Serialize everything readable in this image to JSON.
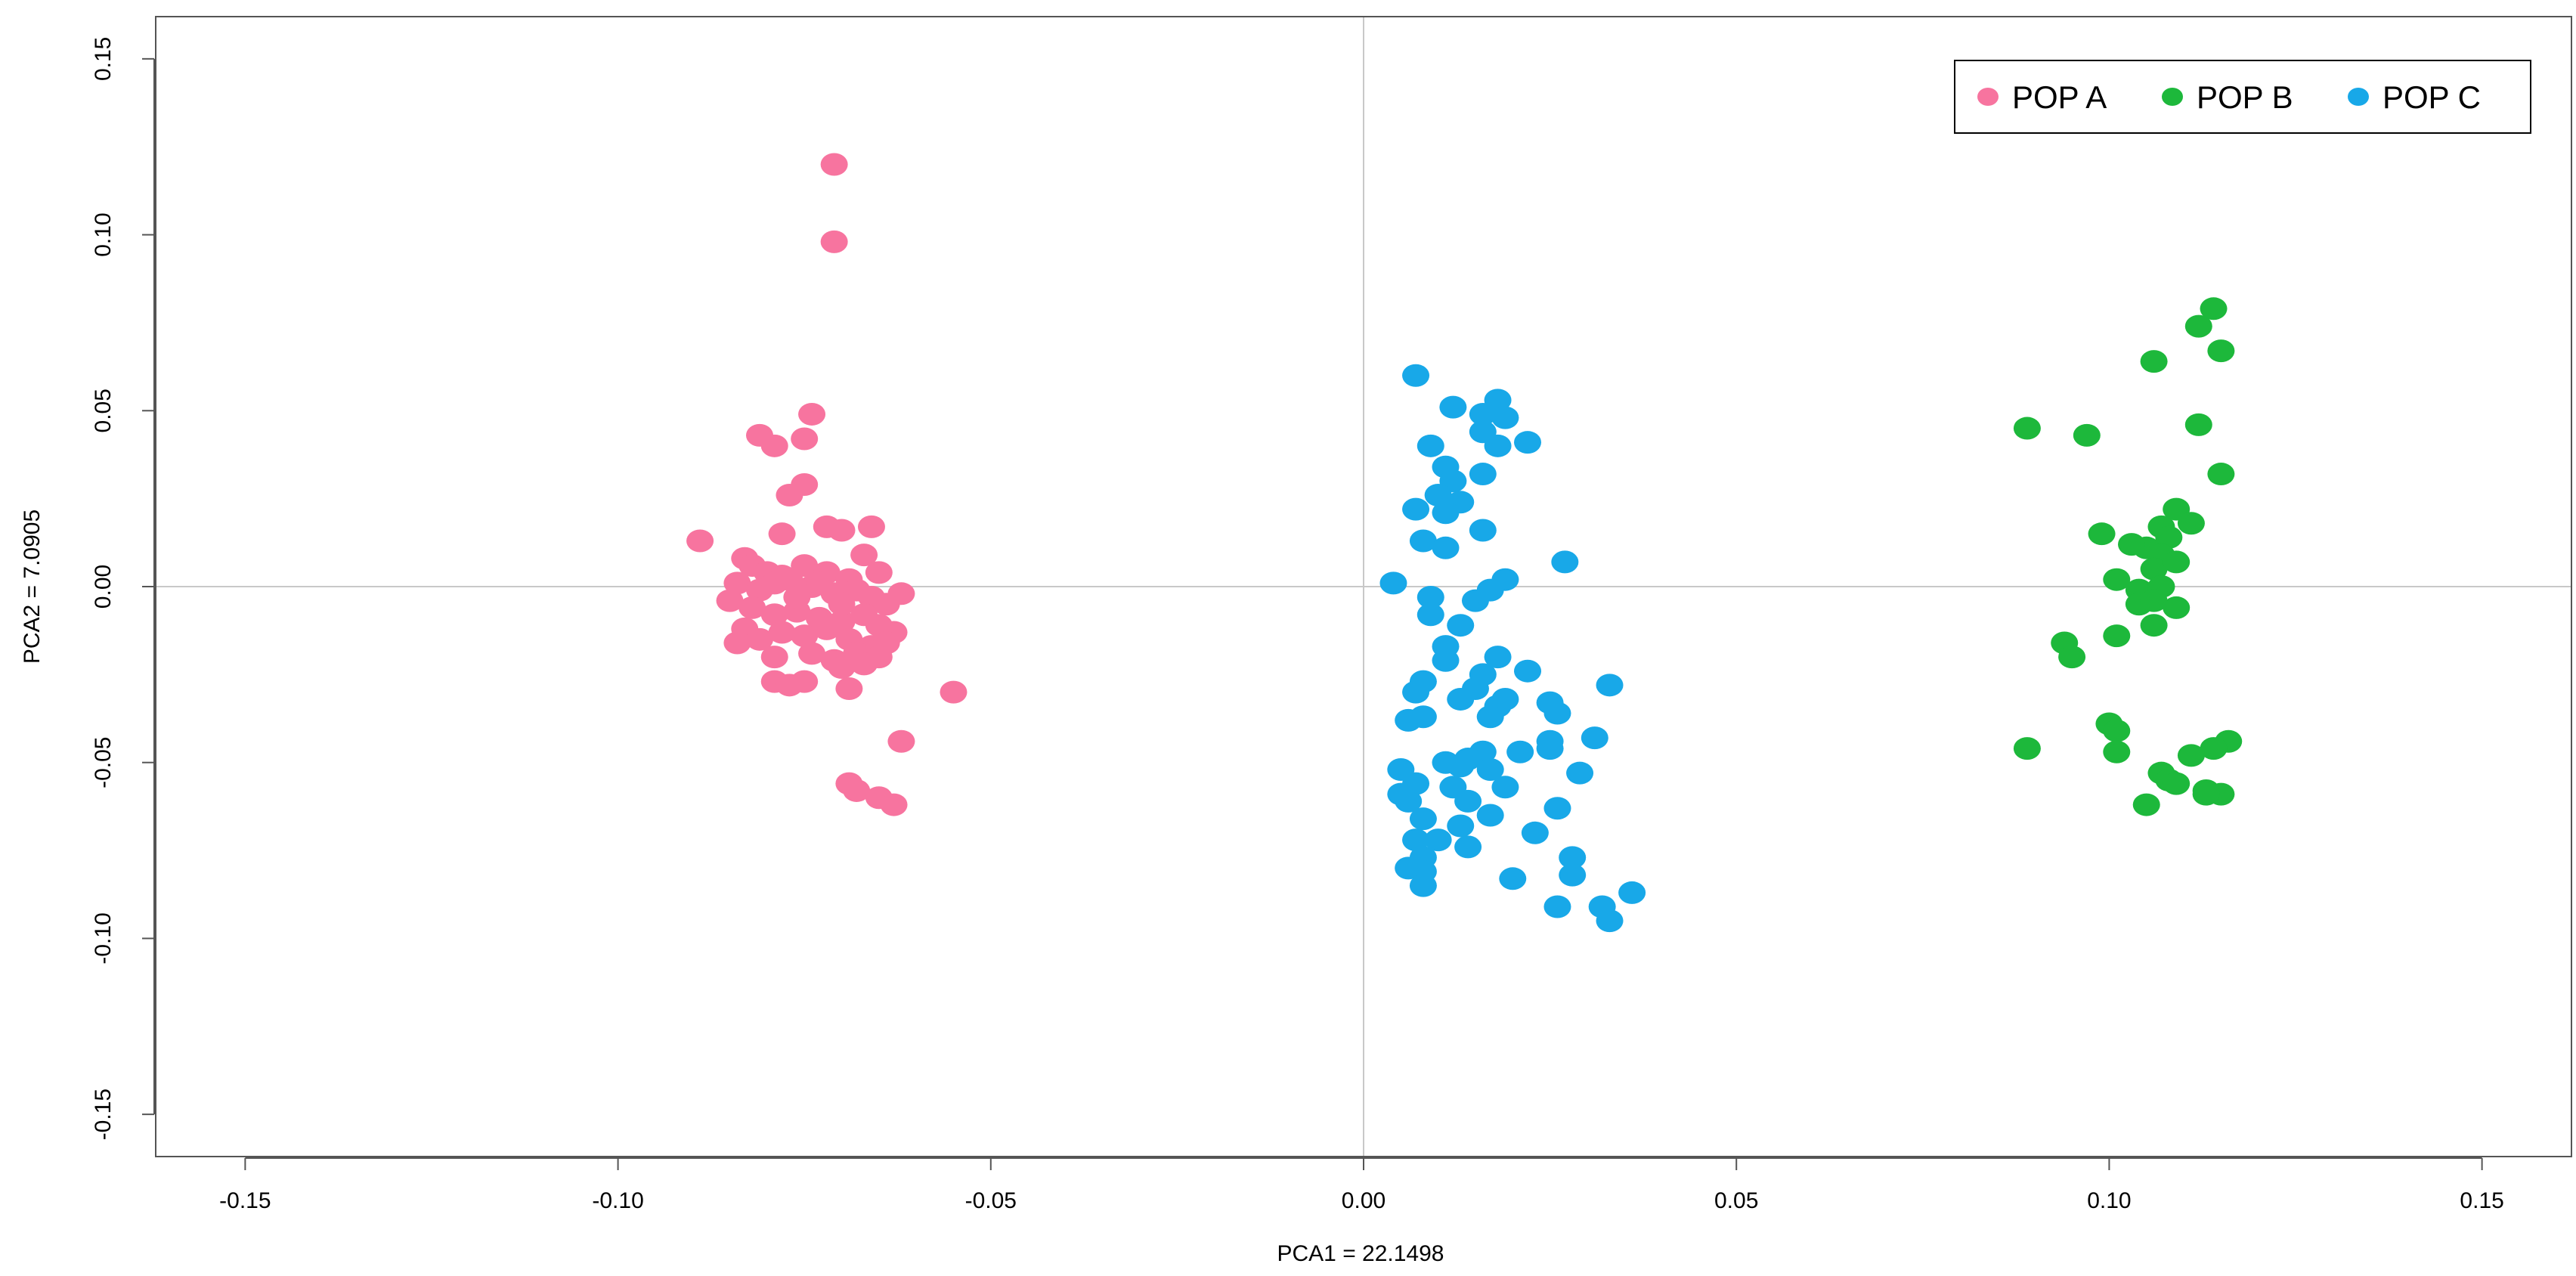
{
  "chart_data": {
    "type": "scatter",
    "title": "",
    "xlabel": "PCA1 = 22.1498",
    "ylabel": "PCA2 = 7.0905",
    "xlim": [
      -0.162,
      0.162
    ],
    "ylim": [
      -0.162,
      0.162
    ],
    "xticks": [
      "-0.15",
      "-0.10",
      "-0.05",
      "0.00",
      "0.05",
      "0.10",
      "0.15"
    ],
    "yticks": [
      "-0.15",
      "-0.10",
      "-0.05",
      "0.00",
      "0.05",
      "0.10",
      "0.15"
    ],
    "reference_lines": {
      "x": 0,
      "y": 0
    },
    "grid": false,
    "legend_position": "top-right",
    "series": [
      {
        "name": "POP A",
        "color": "#F7749F",
        "points": [
          [
            -0.071,
            0.12
          ],
          [
            -0.071,
            0.098
          ],
          [
            -0.074,
            0.049
          ],
          [
            -0.081,
            0.043
          ],
          [
            -0.079,
            0.04
          ],
          [
            -0.075,
            0.042
          ],
          [
            -0.075,
            0.029
          ],
          [
            -0.077,
            0.026
          ],
          [
            -0.089,
            0.013
          ],
          [
            -0.078,
            0.015
          ],
          [
            -0.072,
            0.017
          ],
          [
            -0.07,
            0.016
          ],
          [
            -0.066,
            0.017
          ],
          [
            -0.083,
            0.008
          ],
          [
            -0.082,
            0.006
          ],
          [
            -0.08,
            0.004
          ],
          [
            -0.078,
            0.003
          ],
          [
            -0.075,
            0.006
          ],
          [
            -0.072,
            0.004
          ],
          [
            -0.069,
            0.002
          ],
          [
            -0.067,
            0.009
          ],
          [
            -0.065,
            0.004
          ],
          [
            -0.084,
            0.001
          ],
          [
            -0.081,
            -0.001
          ],
          [
            -0.079,
            0.001
          ],
          [
            -0.077,
            0.002
          ],
          [
            -0.074,
            0.0
          ],
          [
            -0.071,
            -0.002
          ],
          [
            -0.068,
            -0.001
          ],
          [
            -0.066,
            -0.003
          ],
          [
            -0.064,
            -0.005
          ],
          [
            -0.062,
            -0.002
          ],
          [
            -0.085,
            -0.004
          ],
          [
            -0.082,
            -0.006
          ],
          [
            -0.079,
            -0.008
          ],
          [
            -0.076,
            -0.007
          ],
          [
            -0.073,
            -0.009
          ],
          [
            -0.07,
            -0.01
          ],
          [
            -0.067,
            -0.008
          ],
          [
            -0.065,
            -0.011
          ],
          [
            -0.063,
            -0.013
          ],
          [
            -0.083,
            -0.012
          ],
          [
            -0.081,
            -0.015
          ],
          [
            -0.078,
            -0.013
          ],
          [
            -0.075,
            -0.014
          ],
          [
            -0.072,
            -0.012
          ],
          [
            -0.069,
            -0.015
          ],
          [
            -0.066,
            -0.017
          ],
          [
            -0.064,
            -0.016
          ],
          [
            -0.084,
            -0.016
          ],
          [
            -0.079,
            -0.02
          ],
          [
            -0.074,
            -0.019
          ],
          [
            -0.071,
            -0.021
          ],
          [
            -0.068,
            -0.019
          ],
          [
            -0.065,
            -0.02
          ],
          [
            -0.07,
            -0.023
          ],
          [
            -0.067,
            -0.022
          ],
          [
            -0.079,
            -0.027
          ],
          [
            -0.077,
            -0.028
          ],
          [
            -0.075,
            -0.027
          ],
          [
            -0.069,
            -0.029
          ],
          [
            -0.055,
            -0.03
          ],
          [
            -0.062,
            -0.044
          ],
          [
            -0.069,
            -0.056
          ],
          [
            -0.068,
            -0.058
          ],
          [
            -0.065,
            -0.06
          ],
          [
            -0.063,
            -0.062
          ],
          [
            -0.073,
            0.001
          ],
          [
            -0.07,
            -0.005
          ],
          [
            -0.076,
            -0.003
          ]
        ]
      },
      {
        "name": "POP B",
        "color": "#1DB83B",
        "points": [
          [
            0.114,
            0.079
          ],
          [
            0.112,
            0.074
          ],
          [
            0.115,
            0.067
          ],
          [
            0.106,
            0.064
          ],
          [
            0.112,
            0.046
          ],
          [
            0.115,
            0.032
          ],
          [
            0.089,
            0.045
          ],
          [
            0.097,
            0.043
          ],
          [
            0.109,
            0.022
          ],
          [
            0.111,
            0.018
          ],
          [
            0.107,
            0.017
          ],
          [
            0.099,
            0.015
          ],
          [
            0.108,
            0.014
          ],
          [
            0.105,
            0.011
          ],
          [
            0.107,
            0.009
          ],
          [
            0.103,
            0.012
          ],
          [
            0.106,
            0.005
          ],
          [
            0.109,
            0.007
          ],
          [
            0.101,
            0.002
          ],
          [
            0.104,
            -0.001
          ],
          [
            0.107,
            0.0
          ],
          [
            0.104,
            -0.005
          ],
          [
            0.106,
            -0.004
          ],
          [
            0.109,
            -0.006
          ],
          [
            0.106,
            -0.011
          ],
          [
            0.101,
            -0.014
          ],
          [
            0.094,
            -0.016
          ],
          [
            0.095,
            -0.02
          ],
          [
            0.1,
            -0.039
          ],
          [
            0.101,
            -0.041
          ],
          [
            0.101,
            -0.047
          ],
          [
            0.089,
            -0.046
          ],
          [
            0.116,
            -0.044
          ],
          [
            0.114,
            -0.046
          ],
          [
            0.111,
            -0.048
          ],
          [
            0.107,
            -0.053
          ],
          [
            0.108,
            -0.055
          ],
          [
            0.109,
            -0.056
          ],
          [
            0.113,
            -0.058
          ],
          [
            0.115,
            -0.059
          ],
          [
            0.113,
            -0.059
          ],
          [
            0.105,
            -0.062
          ]
        ]
      },
      {
        "name": "POP C",
        "color": "#18A8E8",
        "points": [
          [
            0.007,
            0.06
          ],
          [
            0.018,
            0.053
          ],
          [
            0.012,
            0.051
          ],
          [
            0.016,
            0.049
          ],
          [
            0.019,
            0.048
          ],
          [
            0.016,
            0.044
          ],
          [
            0.022,
            0.041
          ],
          [
            0.009,
            0.04
          ],
          [
            0.018,
            0.04
          ],
          [
            0.011,
            0.034
          ],
          [
            0.016,
            0.032
          ],
          [
            0.012,
            0.03
          ],
          [
            0.01,
            0.026
          ],
          [
            0.013,
            0.024
          ],
          [
            0.007,
            0.022
          ],
          [
            0.011,
            0.021
          ],
          [
            0.016,
            0.016
          ],
          [
            0.008,
            0.013
          ],
          [
            0.011,
            0.011
          ],
          [
            0.027,
            0.007
          ],
          [
            0.019,
            0.002
          ],
          [
            0.004,
            0.001
          ],
          [
            0.017,
            -0.001
          ],
          [
            0.009,
            -0.003
          ],
          [
            0.015,
            -0.004
          ],
          [
            0.009,
            -0.008
          ],
          [
            0.013,
            -0.011
          ],
          [
            0.011,
            -0.017
          ],
          [
            0.018,
            -0.02
          ],
          [
            0.011,
            -0.021
          ],
          [
            0.022,
            -0.024
          ],
          [
            0.016,
            -0.025
          ],
          [
            0.015,
            -0.029
          ],
          [
            0.008,
            -0.027
          ],
          [
            0.033,
            -0.028
          ],
          [
            0.007,
            -0.03
          ],
          [
            0.013,
            -0.032
          ],
          [
            0.019,
            -0.032
          ],
          [
            0.018,
            -0.034
          ],
          [
            0.025,
            -0.033
          ],
          [
            0.026,
            -0.036
          ],
          [
            0.017,
            -0.037
          ],
          [
            0.006,
            -0.038
          ],
          [
            0.008,
            -0.037
          ],
          [
            0.031,
            -0.043
          ],
          [
            0.025,
            -0.044
          ],
          [
            0.025,
            -0.046
          ],
          [
            0.016,
            -0.047
          ],
          [
            0.021,
            -0.047
          ],
          [
            0.014,
            -0.049
          ],
          [
            0.011,
            -0.05
          ],
          [
            0.013,
            -0.051
          ],
          [
            0.017,
            -0.052
          ],
          [
            0.005,
            -0.052
          ],
          [
            0.029,
            -0.053
          ],
          [
            0.007,
            -0.056
          ],
          [
            0.012,
            -0.057
          ],
          [
            0.019,
            -0.057
          ],
          [
            0.005,
            -0.059
          ],
          [
            0.006,
            -0.061
          ],
          [
            0.014,
            -0.061
          ],
          [
            0.017,
            -0.065
          ],
          [
            0.026,
            -0.063
          ],
          [
            0.008,
            -0.066
          ],
          [
            0.013,
            -0.068
          ],
          [
            0.023,
            -0.07
          ],
          [
            0.01,
            -0.072
          ],
          [
            0.007,
            -0.072
          ],
          [
            0.014,
            -0.074
          ],
          [
            0.028,
            -0.077
          ],
          [
            0.008,
            -0.077
          ],
          [
            0.006,
            -0.08
          ],
          [
            0.02,
            -0.083
          ],
          [
            0.008,
            -0.081
          ],
          [
            0.028,
            -0.082
          ],
          [
            0.036,
            -0.087
          ],
          [
            0.008,
            -0.085
          ],
          [
            0.026,
            -0.091
          ],
          [
            0.032,
            -0.091
          ],
          [
            0.033,
            -0.095
          ]
        ]
      }
    ]
  }
}
